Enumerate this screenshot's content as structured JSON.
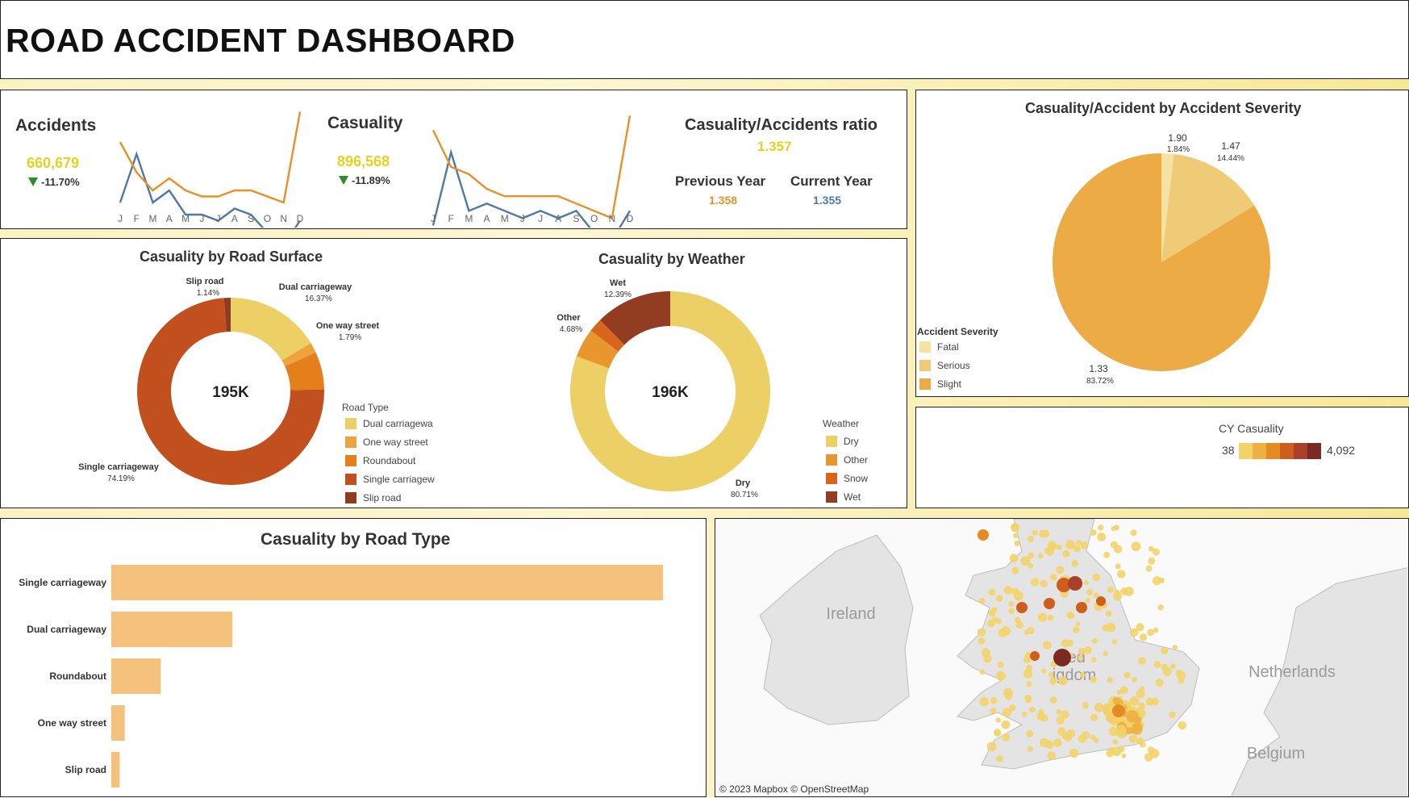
{
  "header": {
    "title": "ROAD ACCIDENT DASHBOARD"
  },
  "kpis": {
    "accidents": {
      "label": "Accidents",
      "value": "660,679",
      "change": "-11.70%"
    },
    "casuality": {
      "label": "Casuality",
      "value": "896,568",
      "change": "-11.89%"
    },
    "ratio": {
      "label": "Casuality/Accidents ratio",
      "value": "1.357",
      "previous_label": "Previous Year",
      "previous_value": "1.358",
      "current_label": "Current Year",
      "current_value": "1.355"
    }
  },
  "colors": {
    "previous_year_line": "#e8902a",
    "current_year_line": "#4e79a7",
    "kpi_value": "#e6d21e",
    "bar": "#f5c27e"
  },
  "chart_data": [
    {
      "type": "line",
      "name_key": "accidents-trend",
      "categories": [
        "J",
        "F",
        "M",
        "A",
        "M",
        "J",
        "J",
        "A",
        "S",
        "O",
        "N",
        "D"
      ],
      "series": [
        {
          "values": [
            58,
            66,
            58,
            60,
            56,
            56,
            55,
            57,
            56,
            53,
            51,
            55
          ]
        },
        {
          "values": [
            68,
            63,
            60,
            62,
            60,
            59,
            59,
            60,
            60,
            59,
            58,
            73
          ]
        }
      ],
      "ylim": [
        48,
        76
      ]
    },
    {
      "type": "line",
      "name_key": "casuality-trend",
      "categories": [
        "J",
        "F",
        "M",
        "A",
        "M",
        "J",
        "J",
        "A",
        "S",
        "O",
        "N",
        "D"
      ],
      "series": [
        {
          "values": [
            78,
            88,
            80,
            81,
            80,
            79,
            80,
            79,
            80,
            77,
            76,
            80
          ]
        },
        {
          "values": [
            91,
            86,
            85,
            83,
            82,
            82,
            82,
            82,
            81,
            80,
            79,
            93
          ]
        }
      ],
      "ylim": [
        72,
        96
      ]
    },
    {
      "type": "pie",
      "title": "Casuality by Road Surface",
      "center_label": "195K",
      "legend_title": "Road Type",
      "slices": [
        {
          "label": "Dual carriageway",
          "legend": "Dual carriagewa",
          "percent": 16.37,
          "color": "#ecd066"
        },
        {
          "label": "One way street",
          "legend": "One way street",
          "percent": 1.79,
          "color": "#eea33f"
        },
        {
          "label": "Roundabout",
          "legend": "Roundabout",
          "percent": 6.51,
          "color": "#e47f1c"
        },
        {
          "label": "Single carriageway",
          "legend": "Single carriagew",
          "percent": 74.19,
          "color": "#c2501f"
        },
        {
          "label": "Slip road",
          "legend": "Slip road",
          "percent": 1.14,
          "color": "#8e3d20"
        }
      ],
      "data_labels": [
        {
          "name": "Dual carriageway",
          "pct": "16.37%"
        },
        {
          "name": "One way street",
          "pct": "1.79%"
        },
        {
          "name": "Single carriageway",
          "pct": "74.19%"
        },
        {
          "name": "Slip road",
          "pct": "1.14%"
        }
      ]
    },
    {
      "type": "pie",
      "title": "Casuality by Weather",
      "center_label": "196K",
      "legend_title": "Weather",
      "slices": [
        {
          "label": "Dry",
          "legend": "Dry",
          "percent": 80.71,
          "color": "#ecd066"
        },
        {
          "label": "Other",
          "legend": "Other",
          "percent": 4.68,
          "color": "#e8962e"
        },
        {
          "label": "Snow",
          "legend": "Snow",
          "percent": 2.22,
          "color": "#d9641c"
        },
        {
          "label": "Wet",
          "legend": "Wet",
          "percent": 12.39,
          "color": "#923c22"
        }
      ],
      "data_labels": [
        {
          "name": "Wet",
          "pct": "12.39%"
        },
        {
          "name": "Other",
          "pct": "4.68%"
        },
        {
          "name": "Dry",
          "pct": "80.71%"
        }
      ]
    },
    {
      "type": "pie",
      "title": "Casuality/Accident by Accident Severity",
      "legend_title": "Accident Severity",
      "slices": [
        {
          "label": "Fatal",
          "value": "1.90",
          "percent": 1.84,
          "color": "#f6e3a4"
        },
        {
          "label": "Serious",
          "value": "1.47",
          "percent": 14.44,
          "color": "#efcb78"
        },
        {
          "label": "Slight",
          "value": "1.33",
          "percent": 83.72,
          "color": "#ecab44"
        }
      ]
    },
    {
      "type": "bar",
      "title": "Casuality by Road Type",
      "categories": [
        "Single carriageway",
        "Dual carriageway",
        "Roundabout",
        "One way street",
        "Slip road"
      ],
      "values": [
        492000,
        108000,
        44000,
        12000,
        7500
      ],
      "xlim": [
        0,
        520000
      ]
    }
  ],
  "map": {
    "legend_title": "CY Casuality",
    "legend_min": "38",
    "legend_max": "4,092",
    "legend_colors": [
      "#f2d36a",
      "#eeb042",
      "#e68a22",
      "#cf5d1c",
      "#a8402a",
      "#7a2a20"
    ],
    "country_labels": {
      "ireland": "Ireland",
      "netherlands": "Netherlands",
      "belgium": "Belgium",
      "uk_part1": "ted",
      "uk_part2": "igdom"
    },
    "attribution": "© 2023 Mapbox  © OpenStreetMap"
  }
}
